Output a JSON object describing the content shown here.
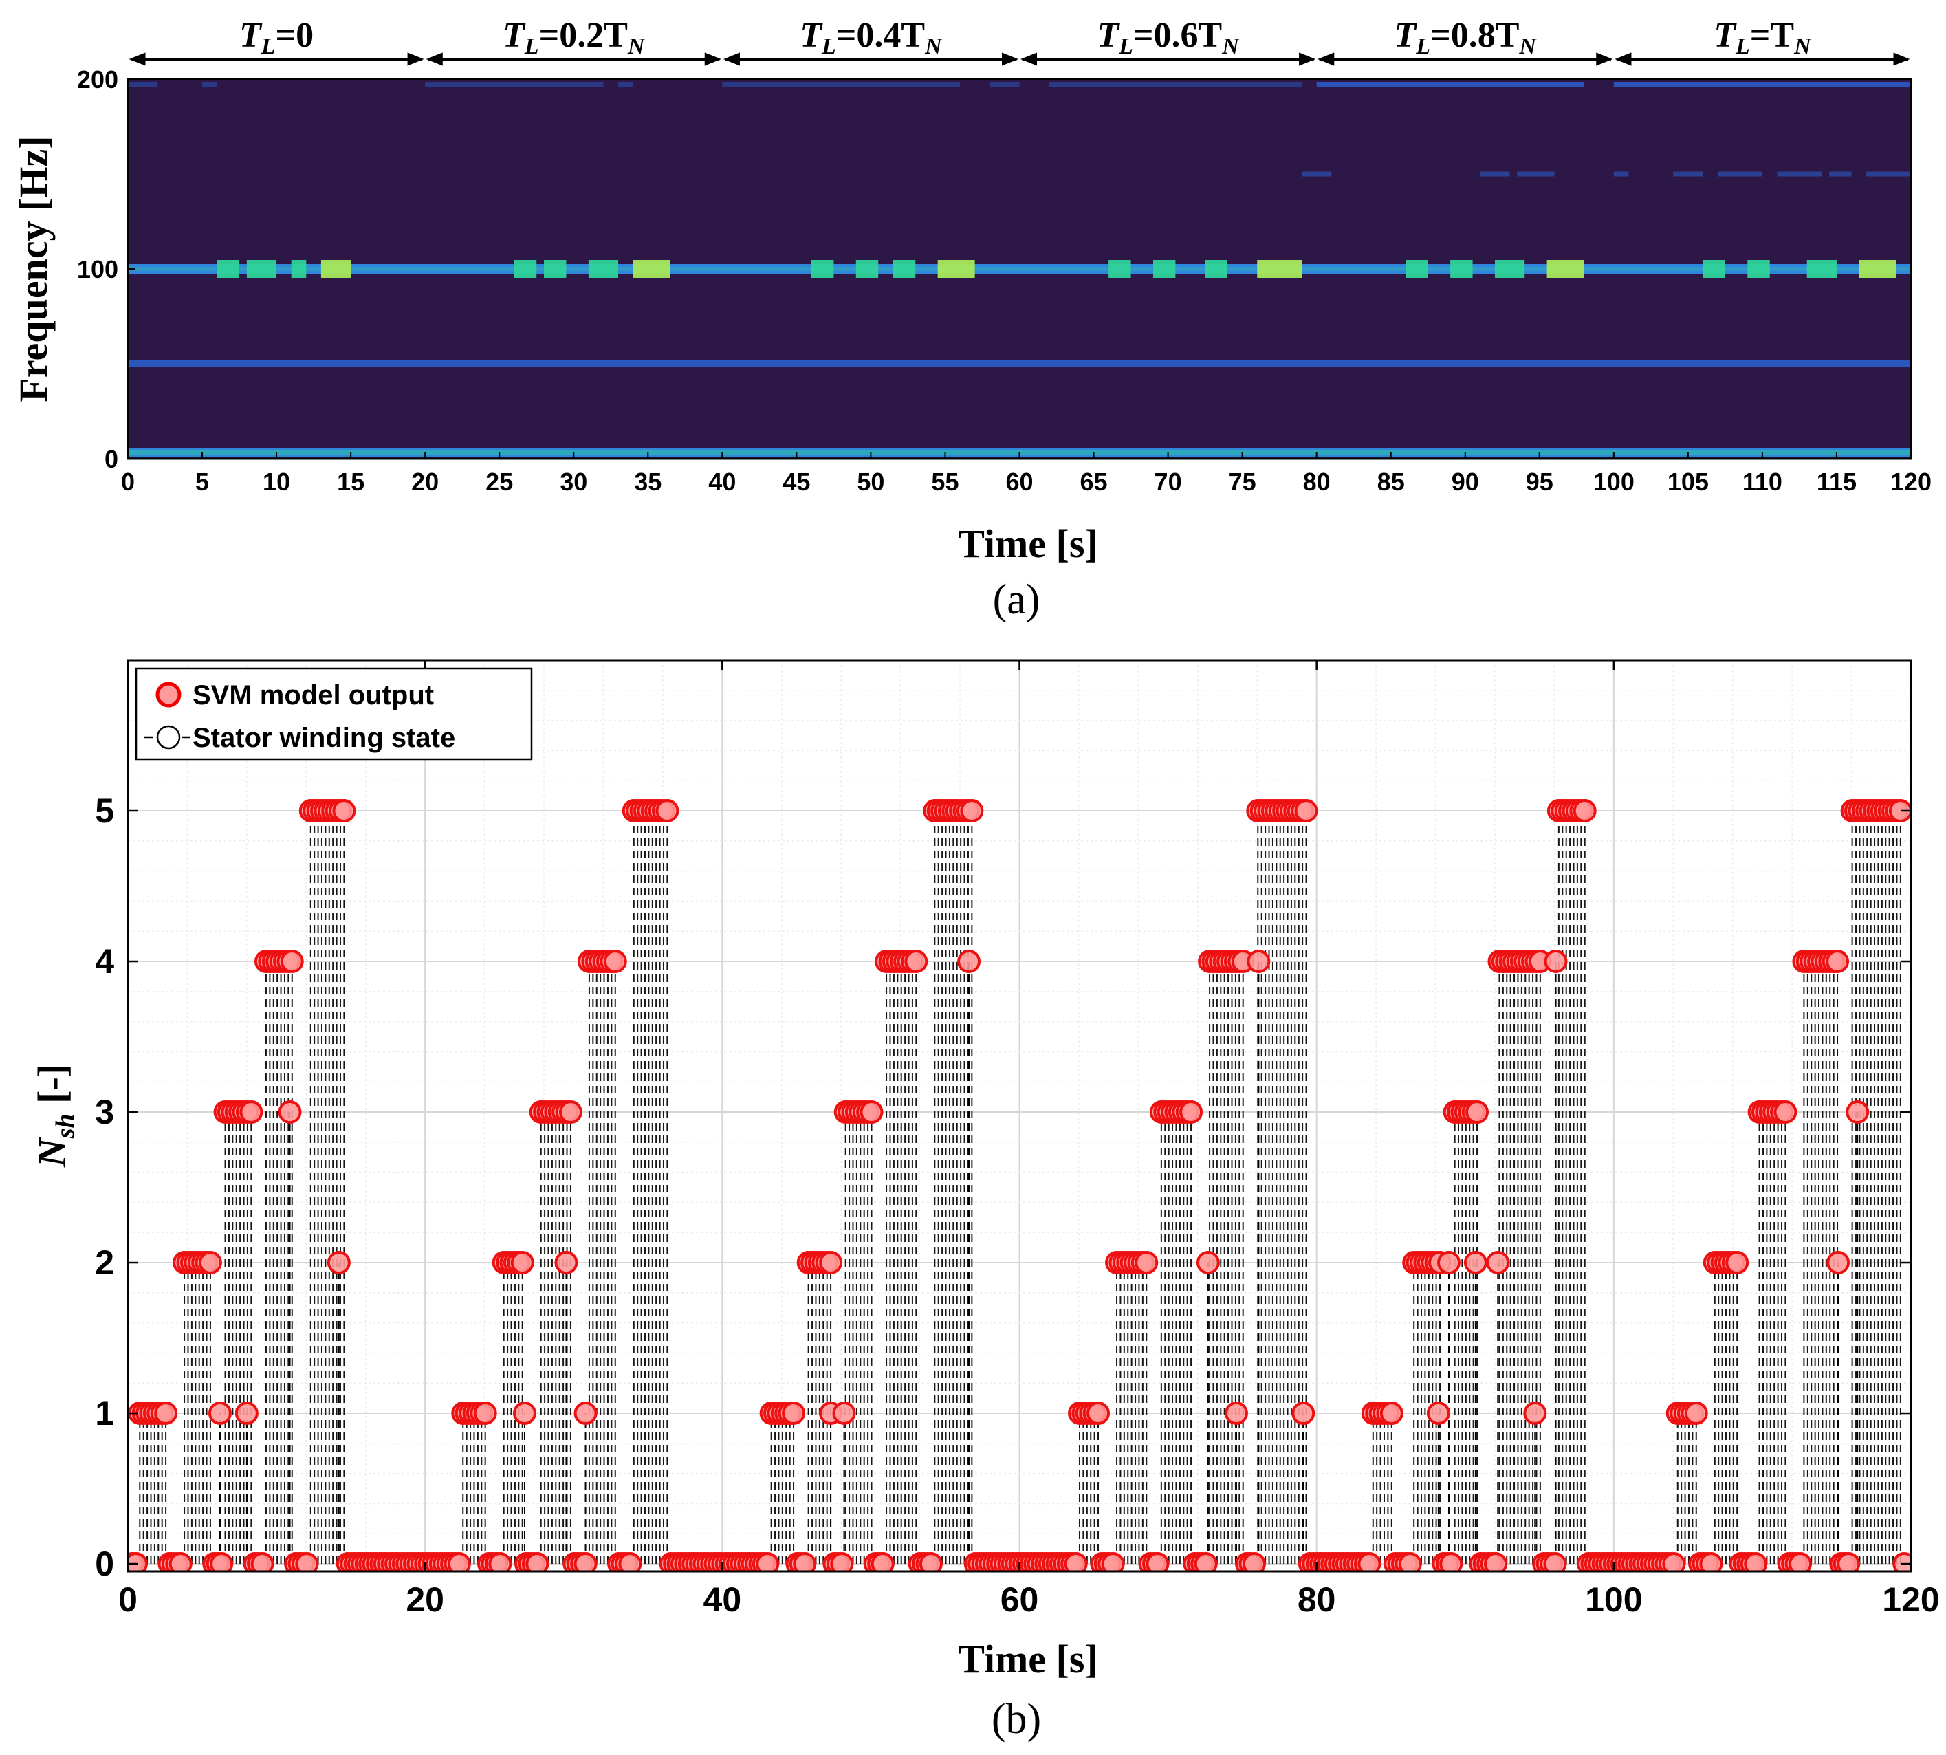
{
  "chart_data": [
    {
      "type": "heatmap",
      "panel": "(a)",
      "xlabel": "Time [s]",
      "ylabel": "Frequency [Hz]",
      "xlim": [
        0,
        120
      ],
      "ylim": [
        0,
        200
      ],
      "xticks": [
        0,
        5,
        10,
        15,
        20,
        25,
        30,
        35,
        40,
        45,
        50,
        55,
        60,
        65,
        70,
        75,
        80,
        85,
        90,
        95,
        100,
        105,
        110,
        115,
        120
      ],
      "yticks": [
        0,
        100,
        200
      ],
      "segments": [
        {
          "label": "T",
          "sub": "L",
          "eq": "=0",
          "sub2": "",
          "start": 0,
          "end": 20
        },
        {
          "label": "T",
          "sub": "L",
          "eq": "=0.2T",
          "sub2": "N",
          "start": 20,
          "end": 40
        },
        {
          "label": "T",
          "sub": "L",
          "eq": "=0.4T",
          "sub2": "N",
          "start": 40,
          "end": 60
        },
        {
          "label": "T",
          "sub": "L",
          "eq": "=0.6T",
          "sub2": "N",
          "start": 60,
          "end": 80
        },
        {
          "label": "T",
          "sub": "L",
          "eq": "=0.8T",
          "sub2": "N",
          "start": 80,
          "end": 100
        },
        {
          "label": "T",
          "sub": "L",
          "eq": "=T",
          "sub2": "N",
          "start": 100,
          "end": 120
        }
      ],
      "bands": [
        {
          "freq": 2,
          "level": "medium"
        },
        {
          "freq": 50,
          "level": "low"
        },
        {
          "freq": 100,
          "level": "medium"
        },
        {
          "freq": 198,
          "level": "faint"
        },
        {
          "freq": 150,
          "level": "faint"
        }
      ],
      "bright_spots_100Hz": [
        [
          6,
          7.5
        ],
        [
          8,
          10
        ],
        [
          11,
          12
        ],
        [
          13,
          15
        ],
        [
          26,
          27.5
        ],
        [
          28,
          29.5
        ],
        [
          31,
          33
        ],
        [
          34,
          36.5
        ],
        [
          46,
          47.5
        ],
        [
          49,
          50.5
        ],
        [
          51.5,
          53
        ],
        [
          54.5,
          57
        ],
        [
          66,
          67.5
        ],
        [
          69,
          70.5
        ],
        [
          72.5,
          74
        ],
        [
          76,
          79
        ],
        [
          86,
          87.5
        ],
        [
          89,
          90.5
        ],
        [
          92,
          94
        ],
        [
          95.5,
          98
        ],
        [
          106,
          107.5
        ],
        [
          109,
          110.5
        ],
        [
          113,
          115
        ],
        [
          116.5,
          119
        ]
      ],
      "colors": {
        "background": "#2d1746",
        "low": "#2a5bc4",
        "medium": "#2f86db",
        "high": "#2fd39a",
        "peak": "#a6e85a"
      }
    },
    {
      "type": "scatter",
      "panel": "(b)",
      "xlabel": "Time [s]",
      "ylabel": "N",
      "ylabel_sub": "sh",
      "ylabel_unit": " [-]",
      "xlim": [
        0,
        120
      ],
      "ylim": [
        -0.05,
        6
      ],
      "xticks": [
        0,
        20,
        40,
        60,
        80,
        100,
        120
      ],
      "yticks": [
        0,
        1,
        2,
        3,
        4,
        5
      ],
      "grid": true,
      "legend_position": "top-left",
      "series": [
        {
          "name": "SVM model output",
          "style": "red filled circle",
          "color": "#ff3b3b"
        },
        {
          "name": "Stator winding state",
          "style": "black dashed stem with open circle",
          "color": "#000000"
        }
      ],
      "state_schedule": [
        {
          "start": 0.0,
          "level": 0
        },
        {
          "start": 0.7,
          "level": 1
        },
        {
          "start": 2.6,
          "level": 0
        },
        {
          "start": 3.7,
          "level": 2
        },
        {
          "start": 5.6,
          "level": 0
        },
        {
          "start": 6.5,
          "level": 3
        },
        {
          "start": 8.4,
          "level": 0
        },
        {
          "start": 9.3,
          "level": 4
        },
        {
          "start": 11.1,
          "level": 0
        },
        {
          "start": 12.1,
          "level": 5
        },
        {
          "start": 14.6,
          "level": 0
        },
        {
          "start": 22.4,
          "level": 1
        },
        {
          "start": 24.2,
          "level": 0
        },
        {
          "start": 25.2,
          "level": 2
        },
        {
          "start": 26.8,
          "level": 0
        },
        {
          "start": 27.8,
          "level": 3
        },
        {
          "start": 29.9,
          "level": 0
        },
        {
          "start": 30.9,
          "level": 4
        },
        {
          "start": 33.0,
          "level": 0
        },
        {
          "start": 33.9,
          "level": 5
        },
        {
          "start": 36.5,
          "level": 0
        },
        {
          "start": 43.3,
          "level": 1
        },
        {
          "start": 44.9,
          "level": 0
        },
        {
          "start": 45.8,
          "level": 2
        },
        {
          "start": 47.5,
          "level": 0
        },
        {
          "start": 48.2,
          "level": 3
        },
        {
          "start": 50.1,
          "level": 0
        },
        {
          "start": 51.0,
          "level": 4
        },
        {
          "start": 53.1,
          "level": 0
        },
        {
          "start": 54.2,
          "level": 5
        },
        {
          "start": 57.0,
          "level": 0
        },
        {
          "start": 63.9,
          "level": 1
        },
        {
          "start": 65.5,
          "level": 0
        },
        {
          "start": 66.5,
          "level": 2
        },
        {
          "start": 68.7,
          "level": 0
        },
        {
          "start": 69.5,
          "level": 3
        },
        {
          "start": 71.7,
          "level": 0
        },
        {
          "start": 72.6,
          "level": 4
        },
        {
          "start": 75.1,
          "level": 0
        },
        {
          "start": 75.9,
          "level": 5
        },
        {
          "start": 79.4,
          "level": 0
        },
        {
          "start": 83.7,
          "level": 1
        },
        {
          "start": 85.2,
          "level": 0
        },
        {
          "start": 86.4,
          "level": 2
        },
        {
          "start": 88.5,
          "level": 0
        },
        {
          "start": 89.2,
          "level": 3
        },
        {
          "start": 91.0,
          "level": 0
        },
        {
          "start": 92.3,
          "level": 4
        },
        {
          "start": 95.1,
          "level": 0
        },
        {
          "start": 96.1,
          "level": 5
        },
        {
          "start": 98.1,
          "level": 0
        },
        {
          "start": 104.1,
          "level": 1
        },
        {
          "start": 105.7,
          "level": 0
        },
        {
          "start": 106.6,
          "level": 2
        },
        {
          "start": 108.5,
          "level": 0
        },
        {
          "start": 109.8,
          "level": 3
        },
        {
          "start": 111.8,
          "level": 0
        },
        {
          "start": 112.7,
          "level": 4
        },
        {
          "start": 115.1,
          "level": 0
        },
        {
          "start": 116.0,
          "level": 5
        },
        {
          "start": 119.5,
          "level": 0
        }
      ],
      "svm_deviations": [
        {
          "x": 6.2,
          "y": 1
        },
        {
          "x": 8.0,
          "y": 1
        },
        {
          "x": 10.9,
          "y": 3
        },
        {
          "x": 14.2,
          "y": 2
        },
        {
          "x": 26.7,
          "y": 1
        },
        {
          "x": 29.5,
          "y": 2
        },
        {
          "x": 30.8,
          "y": 1
        },
        {
          "x": 47.3,
          "y": 1
        },
        {
          "x": 48.2,
          "y": 1
        },
        {
          "x": 56.6,
          "y": 4
        },
        {
          "x": 72.7,
          "y": 2
        },
        {
          "x": 74.6,
          "y": 1
        },
        {
          "x": 76.1,
          "y": 4
        },
        {
          "x": 79.1,
          "y": 1
        },
        {
          "x": 88.2,
          "y": 1
        },
        {
          "x": 88.9,
          "y": 2
        },
        {
          "x": 90.7,
          "y": 2
        },
        {
          "x": 92.2,
          "y": 2
        },
        {
          "x": 94.7,
          "y": 1
        },
        {
          "x": 96.1,
          "y": 4
        },
        {
          "x": 115.1,
          "y": 2
        },
        {
          "x": 116.4,
          "y": 3
        }
      ]
    }
  ]
}
